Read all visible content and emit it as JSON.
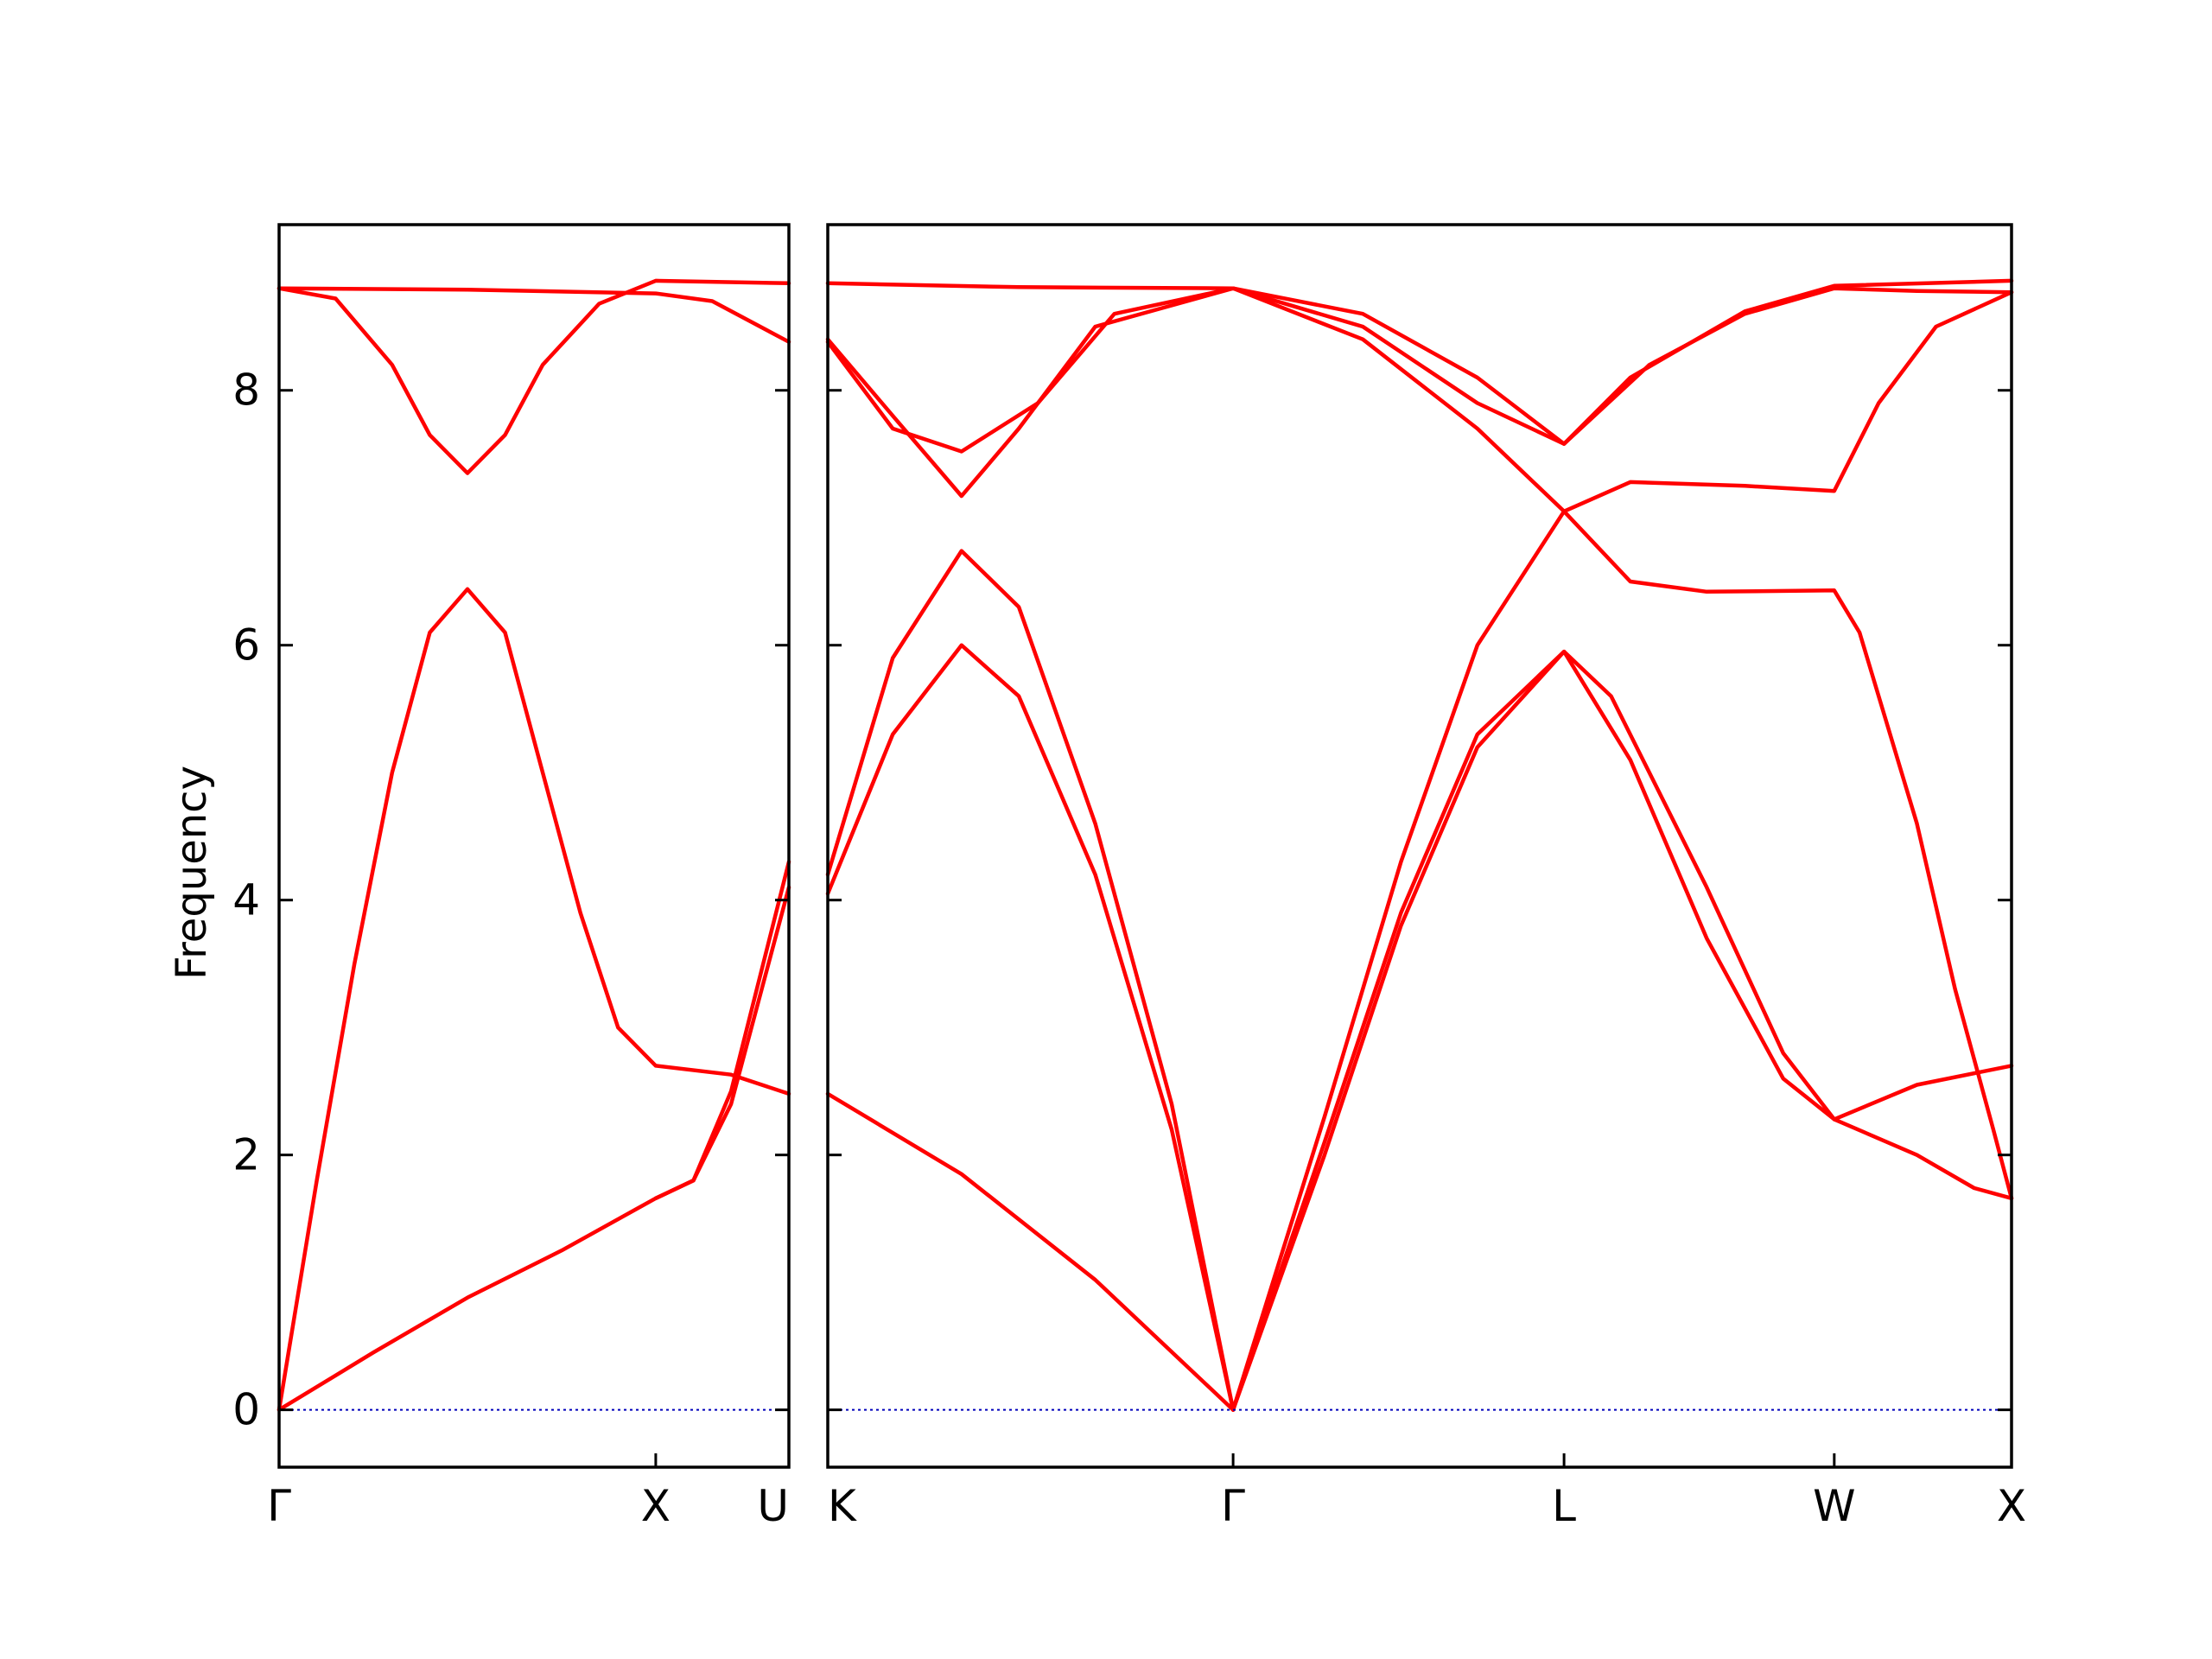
{
  "chart_data": {
    "type": "line",
    "ylabel": "Frequency",
    "ylim": [
      -0.45,
      9.3
    ],
    "yticks": [
      0,
      2,
      4,
      6,
      8
    ],
    "grid": false,
    "line_color": "#ff0000",
    "zero_line_color": "#0000bb",
    "panels": [
      {
        "id": "left",
        "xlim": [
          0,
          1.3535
        ],
        "xticks": [
          {
            "x": 0,
            "label": "Γ"
          },
          {
            "x": 1.0,
            "label": "X"
          },
          {
            "x": 1.3535,
            "label": "U"
          }
        ],
        "series": [
          {
            "points": [
              [
                0,
                0
              ],
              [
                0.25,
                0.45
              ],
              [
                0.5,
                0.88
              ],
              [
                0.75,
                1.25
              ],
              [
                1.0,
                1.66
              ],
              [
                1.1,
                1.8
              ],
              [
                1.2,
                2.4
              ],
              [
                1.3535,
                4.1
              ]
            ]
          },
          {
            "points": [
              [
                0,
                0
              ],
              [
                0.1,
                1.8
              ],
              [
                0.2,
                3.5
              ],
              [
                0.3,
                5.0
              ],
              [
                0.4,
                6.1
              ],
              [
                0.5,
                6.44
              ],
              [
                0.6,
                6.1
              ],
              [
                0.7,
                5.0
              ],
              [
                0.8,
                3.9
              ],
              [
                0.9,
                3.0
              ],
              [
                1.0,
                2.7
              ],
              [
                1.2,
                2.63
              ],
              [
                1.3535,
                2.48
              ]
            ]
          },
          {
            "points": [
              [
                0,
                8.8
              ],
              [
                0.15,
                8.72
              ],
              [
                0.3,
                8.2
              ],
              [
                0.4,
                7.65
              ],
              [
                0.5,
                7.35
              ],
              [
                0.6,
                7.65
              ],
              [
                0.7,
                8.2
              ],
              [
                0.85,
                8.68
              ],
              [
                1.0,
                8.86
              ],
              [
                1.3535,
                8.84
              ]
            ]
          },
          {
            "points": [
              [
                0,
                8.8
              ],
              [
                0.5,
                8.79
              ],
              [
                1.0,
                8.76
              ],
              [
                1.15,
                8.7
              ],
              [
                1.3535,
                8.38
              ]
            ]
          },
          {
            "points": [
              [
                1.0,
                1.66
              ],
              [
                1.1,
                1.8
              ],
              [
                1.2,
                2.5
              ],
              [
                1.3535,
                4.3
              ]
            ]
          }
        ]
      },
      {
        "id": "right",
        "xlim": [
          0,
          3.0977
        ],
        "xticks": [
          {
            "x": 0,
            "label": "K"
          },
          {
            "x": 1.0607,
            "label": "Γ"
          },
          {
            "x": 1.9267,
            "label": "L"
          },
          {
            "x": 2.6338,
            "label": "W"
          },
          {
            "x": 3.0977,
            "label": "X"
          }
        ],
        "series": [
          {
            "points": [
              [
                0,
                2.48
              ],
              [
                0.35,
                1.85
              ],
              [
                0.7,
                1.02
              ],
              [
                1.0607,
                0
              ]
            ]
          },
          {
            "points": [
              [
                0,
                4.05
              ],
              [
                0.17,
                5.3
              ],
              [
                0.35,
                6.0
              ],
              [
                0.5,
                5.6
              ],
              [
                0.7,
                4.2
              ],
              [
                0.9,
                2.2
              ],
              [
                1.0607,
                0
              ]
            ]
          },
          {
            "points": [
              [
                0,
                4.2
              ],
              [
                0.17,
                5.9
              ],
              [
                0.35,
                6.74
              ],
              [
                0.5,
                6.3
              ],
              [
                0.7,
                4.6
              ],
              [
                0.9,
                2.4
              ],
              [
                1.0607,
                0
              ]
            ]
          },
          {
            "points": [
              [
                0,
                8.4
              ],
              [
                0.17,
                7.8
              ],
              [
                0.35,
                7.17
              ],
              [
                0.5,
                7.7
              ],
              [
                0.7,
                8.5
              ],
              [
                1.0607,
                8.8
              ],
              [
                1.4,
                8.6
              ],
              [
                1.7,
                8.1
              ],
              [
                1.9267,
                7.58
              ],
              [
                2.1,
                8.1
              ],
              [
                2.4,
                8.62
              ],
              [
                2.6338,
                8.82
              ],
              [
                3.0977,
                8.86
              ]
            ]
          },
          {
            "points": [
              [
                0,
                8.38
              ],
              [
                0.17,
                7.7
              ],
              [
                0.35,
                7.52
              ],
              [
                0.55,
                7.9
              ],
              [
                0.75,
                8.6
              ],
              [
                1.0607,
                8.8
              ],
              [
                1.4,
                8.5
              ],
              [
                1.7,
                7.9
              ],
              [
                1.9267,
                7.58
              ],
              [
                2.15,
                8.2
              ],
              [
                2.4,
                8.6
              ],
              [
                2.6338,
                8.8
              ],
              [
                2.85,
                8.78
              ],
              [
                3.0977,
                8.77
              ]
            ]
          },
          {
            "points": [
              [
                0,
                8.84
              ],
              [
                0.5,
                8.81
              ],
              [
                1.0607,
                8.8
              ]
            ]
          },
          {
            "points": [
              [
                1.0607,
                8.8
              ],
              [
                1.4,
                8.4
              ],
              [
                1.7,
                7.7
              ],
              [
                1.9267,
                7.05
              ],
              [
                2.1,
                6.5
              ],
              [
                2.3,
                6.42
              ],
              [
                2.6338,
                6.43
              ],
              [
                2.7,
                6.1
              ],
              [
                2.85,
                4.6
              ],
              [
                2.95,
                3.3
              ],
              [
                3.05,
                2.2
              ],
              [
                3.0977,
                1.66
              ]
            ]
          },
          {
            "points": [
              [
                1.0607,
                0
              ],
              [
                1.3,
                2.3
              ],
              [
                1.5,
                4.3
              ],
              [
                1.7,
                6.0
              ],
              [
                1.9267,
                7.05
              ],
              [
                2.1,
                7.28
              ],
              [
                2.4,
                7.25
              ],
              [
                2.6338,
                7.21
              ],
              [
                2.75,
                7.9
              ],
              [
                2.9,
                8.5
              ],
              [
                3.0977,
                8.77
              ]
            ]
          },
          {
            "points": [
              [
                1.0607,
                0
              ],
              [
                1.3,
                2.1
              ],
              [
                1.5,
                3.9
              ],
              [
                1.7,
                5.3
              ],
              [
                1.9267,
                5.95
              ],
              [
                2.1,
                5.1
              ],
              [
                2.3,
                3.7
              ],
              [
                2.5,
                2.6
              ],
              [
                2.6338,
                2.28
              ],
              [
                2.85,
                2.0
              ],
              [
                3.0,
                1.74
              ],
              [
                3.0977,
                1.66
              ]
            ]
          },
          {
            "points": [
              [
                1.0607,
                0
              ],
              [
                1.3,
                2.0
              ],
              [
                1.5,
                3.8
              ],
              [
                1.7,
                5.2
              ],
              [
                1.9267,
                5.95
              ],
              [
                2.05,
                5.6
              ],
              [
                2.3,
                4.1
              ],
              [
                2.5,
                2.8
              ],
              [
                2.6338,
                2.28
              ],
              [
                2.85,
                2.55
              ],
              [
                3.0977,
                2.7
              ]
            ]
          }
        ]
      }
    ]
  }
}
